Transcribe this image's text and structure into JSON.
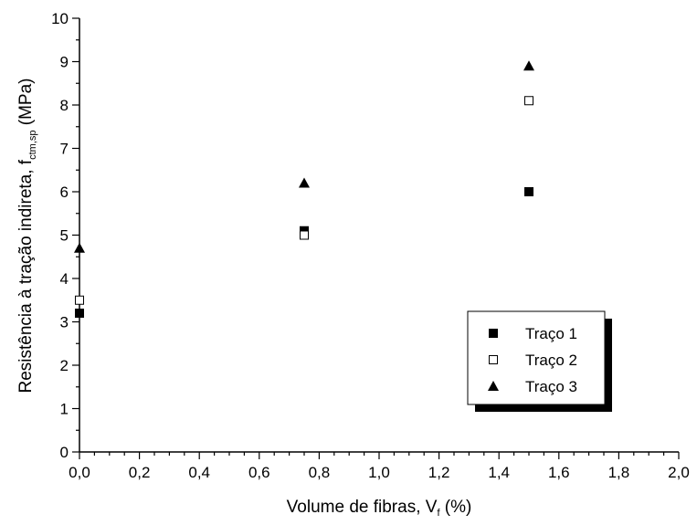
{
  "chart_data": {
    "type": "scatter",
    "xlabel": {
      "main": "Volume de fibras, V",
      "sub": "f",
      "tail": " (%)"
    },
    "ylabel": {
      "main": "Resistência à tração indireta, f",
      "sub": "ctm,sp",
      "tail": " (MPa)"
    },
    "xlim": [
      0,
      2.0
    ],
    "ylim": [
      0,
      10
    ],
    "x_ticks": [
      "0,0",
      "0,2",
      "0,4",
      "0,6",
      "0,8",
      "1,0",
      "1,2",
      "1,4",
      "1,6",
      "1,8",
      "2,0"
    ],
    "y_ticks": [
      "0",
      "1",
      "2",
      "3",
      "4",
      "5",
      "6",
      "7",
      "8",
      "9",
      "10"
    ],
    "grid": false,
    "legend_position": "bottom-right",
    "series": [
      {
        "name": "Traço 1",
        "marker": "filled-square",
        "x": [
          0.0,
          0.75,
          1.5
        ],
        "y": [
          3.2,
          5.1,
          6.0
        ]
      },
      {
        "name": "Traço 2",
        "marker": "open-square",
        "x": [
          0.0,
          0.75,
          1.5
        ],
        "y": [
          3.5,
          5.0,
          8.1
        ]
      },
      {
        "name": "Traço 3",
        "marker": "filled-triangle",
        "x": [
          0.0,
          0.75,
          1.5
        ],
        "y": [
          4.7,
          6.2,
          8.9
        ]
      }
    ]
  }
}
